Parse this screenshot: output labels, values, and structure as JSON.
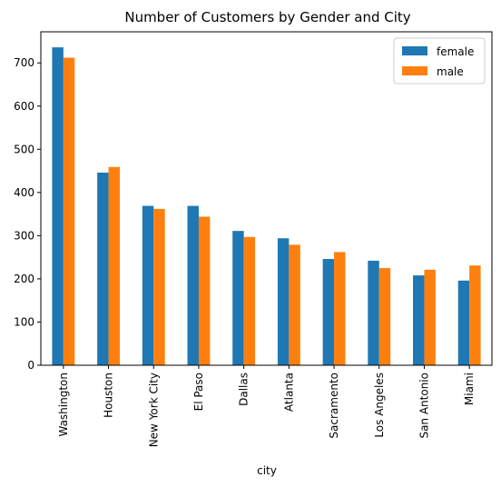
{
  "chart_data": {
    "type": "bar",
    "title": "Number of Customers by Gender and City",
    "xlabel": "city",
    "ylabel": "",
    "categories": [
      "Washington",
      "Houston",
      "New York City",
      "El Paso",
      "Dallas",
      "Atlanta",
      "Sacramento",
      "Los Angeles",
      "San Antonio",
      "Miami"
    ],
    "series": [
      {
        "name": "female",
        "color": "#1f77b4",
        "values": [
          736,
          446,
          369,
          369,
          311,
          294,
          246,
          242,
          208,
          196
        ]
      },
      {
        "name": "male",
        "color": "#ff7f0e",
        "values": [
          712,
          459,
          362,
          344,
          297,
          279,
          262,
          225,
          221,
          231
        ]
      }
    ],
    "ylim": [
      0,
      772
    ],
    "yticks": [
      0,
      100,
      200,
      300,
      400,
      500,
      600,
      700
    ],
    "grid": false,
    "legend_position": "top-right"
  }
}
